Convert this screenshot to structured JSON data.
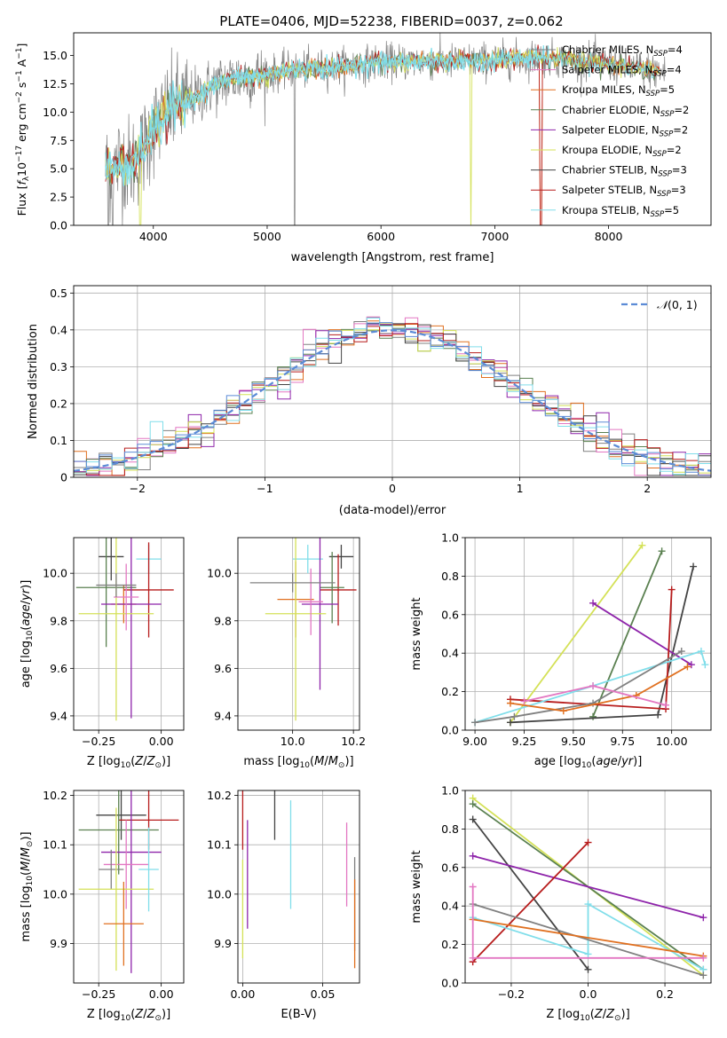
{
  "title": "PLATE=0406, MJD=52238, FIBERID=0037, z=0.062",
  "colors": {
    "Chabrier MILES": "#808080",
    "Salpeter MILES": "#e377c2",
    "Kroupa MILES": "#e07020",
    "Chabrier ELODIE": "#5a8050",
    "Salpeter ELODIE": "#8e24aa",
    "Kroupa ELODIE": "#d4e157",
    "Chabrier STELIB": "#444444",
    "Salpeter STELIB": "#b71c1c",
    "Kroupa STELIB": "#80deea"
  },
  "chart_data": [
    {
      "id": "spectrum",
      "type": "line",
      "title": "PLATE=0406, MJD=52238, FIBERID=0037, z=0.062",
      "xlabel": "wavelength [Angstrom, rest frame]",
      "ylabel": "Flux [fλ10⁻¹⁷ erg cm⁻² s⁻¹ A⁻¹]",
      "xlim": [
        3300,
        8900
      ],
      "ylim": [
        0,
        17
      ],
      "xticks": [
        4000,
        5000,
        6000,
        7000,
        8000
      ],
      "yticks": [
        0.0,
        2.5,
        5.0,
        7.5,
        10.0,
        12.5,
        15.0
      ],
      "legend": "right",
      "grid": false,
      "continuum": {
        "x": [
          3580,
          3650,
          3700,
          3800,
          3900,
          4000,
          4100,
          4200,
          4300,
          4400,
          4500,
          4700,
          5000,
          5200,
          5500,
          5800,
          6000,
          6300,
          6600,
          7000,
          7400,
          7800,
          8000,
          8300,
          8500
        ],
        "y": [
          5.0,
          4.6,
          5.8,
          5.3,
          6.5,
          8.6,
          9.6,
          10.6,
          11.0,
          11.5,
          12.2,
          13.0,
          13.3,
          13.7,
          13.9,
          14.2,
          14.4,
          14.5,
          14.4,
          14.6,
          14.8,
          14.5,
          14.2,
          13.8,
          13.5
        ]
      },
      "series": [
        {
          "name": "Chabrier MILES, N_SSP=4",
          "key": "Chabrier MILES",
          "label": "Chabrier MILES, N",
          "sub": "SSP",
          "n": "=4"
        },
        {
          "name": "Salpeter MILES, N_SSP=4",
          "key": "Salpeter MILES",
          "label": "Salpeter MILES, N",
          "sub": "SSP",
          "n": "=4"
        },
        {
          "name": "Kroupa MILES, N_SSP=5",
          "key": "Kroupa MILES",
          "label": "Kroupa MILES, N",
          "sub": "SSP",
          "n": "=5"
        },
        {
          "name": "Chabrier ELODIE, N_SSP=2",
          "key": "Chabrier ELODIE",
          "label": "Chabrier ELODIE, N",
          "sub": "SSP",
          "n": "=2"
        },
        {
          "name": "Salpeter ELODIE, N_SSP=2",
          "key": "Salpeter ELODIE",
          "label": "Salpeter ELODIE, N",
          "sub": "SSP",
          "n": "=2"
        },
        {
          "name": "Kroupa ELODIE, N_SSP=2",
          "key": "Kroupa ELODIE",
          "label": "Kroupa ELODIE, N",
          "sub": "SSP",
          "n": "=2"
        },
        {
          "name": "Chabrier STELIB, N_SSP=3",
          "key": "Chabrier STELIB",
          "label": "Chabrier STELIB, N",
          "sub": "SSP",
          "n": "=3"
        },
        {
          "name": "Salpeter STELIB, N_SSP=3",
          "key": "Salpeter STELIB",
          "label": "Salpeter STELIB, N",
          "sub": "SSP",
          "n": "=3"
        },
        {
          "name": "Kroupa STELIB, N_SSP=5",
          "key": "Kroupa STELIB",
          "label": "Kroupa STELIB, N",
          "sub": "SSP",
          "n": "=5"
        }
      ]
    },
    {
      "id": "residuals",
      "type": "line",
      "xlabel": "(data-model)/error",
      "ylabel": "Normed distribution",
      "xlim": [
        -2.5,
        2.5
      ],
      "ylim": [
        0,
        0.52
      ],
      "xticks": [
        -2,
        -1,
        0,
        1,
        2
      ],
      "yticks": [
        0.0,
        0.1,
        0.2,
        0.3,
        0.4,
        0.5
      ],
      "grid": true,
      "legend": "top-right",
      "legend_label": "N(0,1)",
      "bin_width": 0.1
    },
    {
      "id": "age-vs-Z",
      "type": "scatter",
      "xlabel": "Z [log10(Z/Z⊙)]",
      "ylabel": "age [log10(age/yr)]",
      "xlim": [
        -0.35,
        0.09
      ],
      "ylim": [
        9.34,
        10.15
      ],
      "xticks": [
        -0.25,
        0.0
      ],
      "yticks": [
        9.4,
        9.6,
        9.8,
        10.0
      ],
      "grid": true,
      "points": [
        {
          "key": "Chabrier STELIB",
          "x": -0.2,
          "xerr": 0.05,
          "y": 10.07,
          "yerr": 0.1
        },
        {
          "key": "Kroupa STELIB",
          "x": -0.05,
          "xerr": 0.05,
          "y": 10.06,
          "yerr": 0.06
        },
        {
          "key": "Kroupa MILES",
          "x": -0.15,
          "xerr": 0.05,
          "y": 9.87,
          "yerr": 0.08
        },
        {
          "key": "Chabrier ELODIE",
          "x": -0.22,
          "xerr": 0.12,
          "y": 9.94,
          "yerr": 0.25
        },
        {
          "key": "Salpeter STELIB",
          "x": -0.05,
          "xerr": 0.1,
          "y": 9.93,
          "yerr": 0.2
        },
        {
          "key": "Salpeter ELODIE",
          "x": -0.12,
          "xerr": 0.12,
          "y": 9.87,
          "yerr": 0.48
        },
        {
          "key": "Kroupa ELODIE",
          "x": -0.18,
          "xerr": 0.15,
          "y": 9.83,
          "yerr": 0.45
        },
        {
          "key": "Salpeter MILES",
          "x": -0.14,
          "xerr": 0.05,
          "y": 9.9,
          "yerr": 0.14
        },
        {
          "key": "Chabrier MILES",
          "x": -0.18,
          "xerr": 0.08,
          "y": 9.95,
          "yerr": 0.05
        }
      ]
    },
    {
      "id": "age-vs-mass",
      "type": "scatter",
      "xlabel": "mass [log10(M/M⊙)]",
      "ylabel": "",
      "xlim": [
        9.82,
        10.22
      ],
      "ylim": [
        9.34,
        10.15
      ],
      "xticks": [
        10.0,
        10.2
      ],
      "yticks": [
        9.4,
        9.6,
        9.8,
        10.0
      ],
      "grid": true,
      "points": [
        {
          "key": "Chabrier STELIB",
          "x": 10.16,
          "xerr": 0.04,
          "y": 10.07,
          "yerr": 0.05
        },
        {
          "key": "Kroupa STELIB",
          "x": 10.05,
          "xerr": 0.05,
          "y": 10.06,
          "yerr": 0.06
        },
        {
          "key": "Salpeter STELIB",
          "x": 10.15,
          "xerr": 0.06,
          "y": 9.93,
          "yerr": 0.15
        },
        {
          "key": "Chabrier ELODIE",
          "x": 10.13,
          "xerr": 0.04,
          "y": 9.94,
          "yerr": 0.15
        },
        {
          "key": "Salpeter ELODIE",
          "x": 10.09,
          "xerr": 0.06,
          "y": 9.87,
          "yerr": 0.36
        },
        {
          "key": "Kroupa MILES",
          "x": 10.01,
          "xerr": 0.06,
          "y": 9.89,
          "yerr": 0.16
        },
        {
          "key": "Kroupa ELODIE",
          "x": 10.01,
          "xerr": 0.1,
          "y": 9.83,
          "yerr": 0.45
        },
        {
          "key": "Salpeter MILES",
          "x": 10.06,
          "xerr": 0.04,
          "y": 9.88,
          "yerr": 0.14
        },
        {
          "key": "Chabrier MILES",
          "x": 10.0,
          "xerr": 0.14,
          "y": 9.96,
          "yerr": 0.04
        }
      ]
    },
    {
      "id": "weight-vs-age",
      "type": "line",
      "xlabel": "age [log10(age/yr)]",
      "ylabel": "mass weight",
      "xlim": [
        8.95,
        10.2
      ],
      "ylim": [
        0,
        1.0
      ],
      "xticks": [
        9.0,
        9.25,
        9.5,
        9.75,
        10.0
      ],
      "yticks": [
        0.0,
        0.2,
        0.4,
        0.6,
        0.8,
        1.0
      ],
      "grid": true,
      "series": [
        {
          "key": "Kroupa ELODIE",
          "x": [
            9.18,
            9.85
          ],
          "y": [
            0.04,
            0.96
          ]
        },
        {
          "key": "Chabrier ELODIE",
          "x": [
            9.6,
            9.95
          ],
          "y": [
            0.07,
            0.93
          ]
        },
        {
          "key": "Chabrier STELIB",
          "x": [
            9.18,
            9.93,
            10.11
          ],
          "y": [
            0.04,
            0.08,
            0.85
          ]
        },
        {
          "key": "Salpeter ELODIE",
          "x": [
            9.6,
            10.1
          ],
          "y": [
            0.66,
            0.34
          ]
        },
        {
          "key": "Salpeter STELIB",
          "x": [
            9.18,
            9.97,
            10.0
          ],
          "y": [
            0.16,
            0.11,
            0.73
          ]
        },
        {
          "key": "Kroupa STELIB",
          "x": [
            9.0,
            9.6,
            10.15,
            10.17
          ],
          "y": [
            0.04,
            0.23,
            0.41,
            0.34
          ]
        },
        {
          "key": "Chabrier MILES",
          "x": [
            9.0,
            9.2,
            9.6,
            10.05
          ],
          "y": [
            0.04,
            0.07,
            0.14,
            0.41
          ]
        },
        {
          "key": "Kroupa MILES",
          "x": [
            9.18,
            9.45,
            9.82,
            10.08
          ],
          "y": [
            0.14,
            0.1,
            0.18,
            0.33
          ]
        },
        {
          "key": "Salpeter MILES",
          "x": [
            9.25,
            9.6,
            9.97
          ],
          "y": [
            0.15,
            0.23,
            0.13
          ]
        }
      ]
    },
    {
      "id": "mass-vs-Z",
      "type": "scatter",
      "xlabel": "Z [log10(Z/Z⊙)]",
      "ylabel": "mass [log10(M/M⊙)]",
      "xlim": [
        -0.35,
        0.09
      ],
      "ylim": [
        9.82,
        10.21
      ],
      "xticks": [
        -0.25,
        0.0
      ],
      "yticks": [
        9.9,
        10.0,
        10.1,
        10.2
      ],
      "grid": true,
      "points": [
        {
          "key": "Chabrier STELIB",
          "x": -0.16,
          "xerr": 0.1,
          "y": 10.16,
          "yerr": 0.05
        },
        {
          "key": "Salpeter STELIB",
          "x": -0.05,
          "xerr": 0.12,
          "y": 10.15,
          "yerr": 0.06
        },
        {
          "key": "Chabrier ELODIE",
          "x": -0.17,
          "xerr": 0.16,
          "y": 10.13,
          "yerr": 0.09
        },
        {
          "key": "Salpeter ELODIE",
          "x": -0.12,
          "xerr": 0.12,
          "y": 10.085,
          "yerr": 0.245
        },
        {
          "key": "Salpeter MILES",
          "x": -0.14,
          "xerr": 0.09,
          "y": 10.06,
          "yerr": 0.09
        },
        {
          "key": "Chabrier MILES",
          "x": -0.2,
          "xerr": 0.05,
          "y": 10.05,
          "yerr": 0.04
        },
        {
          "key": "Kroupa ELODIE",
          "x": -0.18,
          "xerr": 0.15,
          "y": 10.01,
          "yerr": 0.165
        },
        {
          "key": "Kroupa STELIB",
          "x": -0.05,
          "xerr": 0.04,
          "y": 10.05,
          "yerr": 0.085
        },
        {
          "key": "Kroupa MILES",
          "x": -0.15,
          "xerr": 0.08,
          "y": 9.94,
          "yerr": 0.085
        }
      ]
    },
    {
      "id": "mass-vs-ebv",
      "type": "scatter",
      "xlabel": "E(B-V)",
      "ylabel": "",
      "xlim": [
        -0.003,
        0.073
      ],
      "ylim": [
        9.82,
        10.21
      ],
      "xticks": [
        0.0,
        0.05
      ],
      "yticks": [
        9.9,
        10.0,
        10.1,
        10.2
      ],
      "grid": true,
      "points": [
        {
          "key": "Salpeter STELIB",
          "x": 0.0,
          "xerr": 0,
          "y": 10.15,
          "yerr": 0.06
        },
        {
          "key": "Kroupa ELODIE",
          "x": 0.0,
          "xerr": 0,
          "y": 9.97,
          "yerr": 0.1
        },
        {
          "key": "Salpeter ELODIE",
          "x": 0.003,
          "xerr": 0,
          "y": 10.04,
          "yerr": 0.11
        },
        {
          "key": "Chabrier STELIB",
          "x": 0.02,
          "xerr": 0,
          "y": 10.16,
          "yerr": 0.05
        },
        {
          "key": "Kroupa STELIB",
          "x": 0.03,
          "xerr": 0,
          "y": 10.08,
          "yerr": 0.11
        },
        {
          "key": "Salpeter MILES",
          "x": 0.065,
          "xerr": 0,
          "y": 10.06,
          "yerr": 0.085
        },
        {
          "key": "Chabrier MILES",
          "x": 0.07,
          "xerr": 0,
          "y": 9.98,
          "yerr": 0.095
        },
        {
          "key": "Kroupa MILES",
          "x": 0.07,
          "xerr": 0,
          "y": 9.94,
          "yerr": 0.09
        }
      ]
    },
    {
      "id": "weight-vs-Z",
      "type": "line",
      "xlabel": "Z [log10(Z/Z⊙)]",
      "ylabel": "mass weight",
      "xlim": [
        -0.32,
        0.32
      ],
      "ylim": [
        0,
        1.0
      ],
      "xticks": [
        -0.2,
        0.0,
        0.2
      ],
      "yticks": [
        0.0,
        0.2,
        0.4,
        0.6,
        0.8,
        1.0
      ],
      "grid": true,
      "series": [
        {
          "key": "Kroupa ELODIE",
          "x": [
            -0.3,
            0.3
          ],
          "y": [
            0.96,
            0.04
          ]
        },
        {
          "key": "Chabrier ELODIE",
          "x": [
            -0.3,
            0.3
          ],
          "y": [
            0.93,
            0.07
          ]
        },
        {
          "key": "Chabrier STELIB",
          "x": [
            -0.3,
            0.0
          ],
          "y": [
            0.85,
            0.07
          ]
        },
        {
          "key": "Salpeter ELODIE",
          "x": [
            -0.3,
            0.3
          ],
          "y": [
            0.66,
            0.34
          ]
        },
        {
          "key": "Salpeter STELIB",
          "x": [
            -0.3,
            0.0
          ],
          "y": [
            0.11,
            0.73
          ]
        },
        {
          "key": "Kroupa STELIB",
          "x": [
            -0.3,
            0.0,
            0.0,
            0.3
          ],
          "y": [
            0.34,
            0.15,
            0.41,
            0.07
          ]
        },
        {
          "key": "Chabrier MILES",
          "x": [
            -0.3,
            0.3
          ],
          "y": [
            0.41,
            0.04
          ]
        },
        {
          "key": "Kroupa MILES",
          "x": [
            -0.3,
            0.3
          ],
          "y": [
            0.33,
            0.14
          ]
        },
        {
          "key": "Salpeter MILES",
          "x": [
            -0.3,
            -0.3,
            0.3
          ],
          "y": [
            0.5,
            0.13,
            0.13
          ]
        }
      ]
    }
  ]
}
